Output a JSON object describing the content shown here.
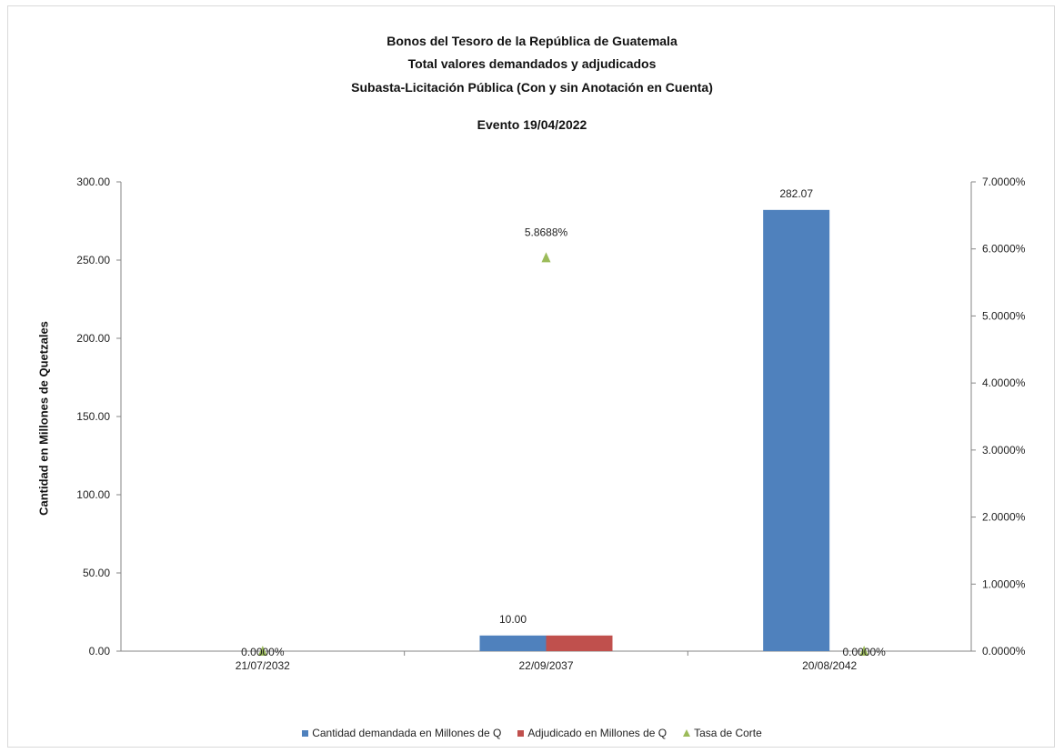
{
  "chart_data": {
    "type": "bar",
    "title": [
      "Bonos del Tesoro de la República de Guatemala",
      "Total valores demandados y adjudicados",
      "Subasta-Licitación Pública (Con y sin Anotación en Cuenta)",
      "Evento 19/04/2022"
    ],
    "ylabel": "Cantidad en Millones de Quetzales",
    "y2label": "",
    "categories": [
      "21/07/2032",
      "22/09/2037",
      "20/08/2042"
    ],
    "ylim": [
      0,
      300
    ],
    "y2lim": [
      0,
      0.07
    ],
    "yticks": [
      "0.00",
      "50.00",
      "100.00",
      "150.00",
      "200.00",
      "250.00",
      "300.00"
    ],
    "y2ticks": [
      "0.0000%",
      "1.0000%",
      "2.0000%",
      "3.0000%",
      "4.0000%",
      "5.0000%",
      "6.0000%",
      "7.0000%"
    ],
    "series": [
      {
        "name": "Cantidad demandada en Millones de Q",
        "kind": "bar",
        "color": "#4f81bd",
        "values": [
          0,
          10.0,
          282.07
        ],
        "labels": [
          "",
          "10.00",
          "282.07"
        ]
      },
      {
        "name": "Adjudicado en Millones de Q",
        "kind": "bar",
        "color": "#c0504d",
        "values": [
          0,
          10.0,
          0
        ],
        "labels": [
          "",
          "",
          ""
        ]
      },
      {
        "name": "Tasa de Corte",
        "kind": "marker",
        "axis": "right",
        "color": "#9bbb59",
        "values": [
          0,
          0.058688,
          0
        ],
        "labels": [
          "0.0000%",
          "5.8688%",
          "0.0000%"
        ]
      }
    ],
    "legend": "bottom",
    "grid": false
  }
}
